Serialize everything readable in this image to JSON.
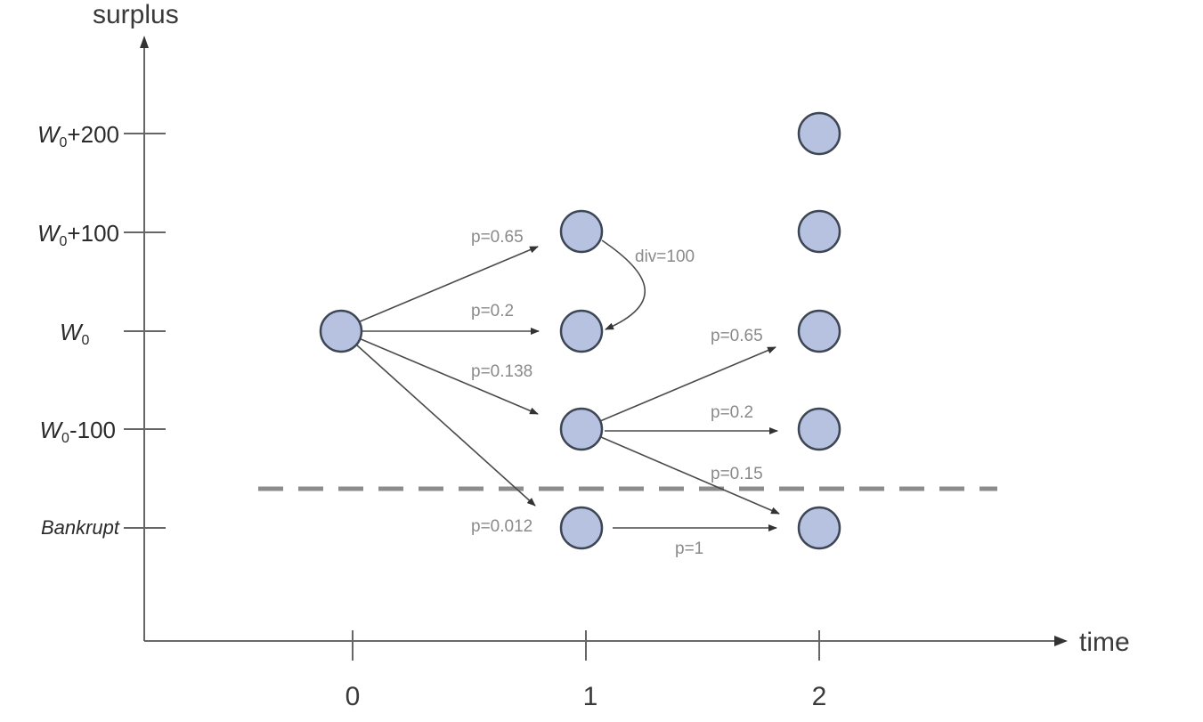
{
  "axes": {
    "y_title": "surplus",
    "x_title": "time",
    "x_ticks": [
      "0",
      "1",
      "2"
    ]
  },
  "levels": [
    {
      "base": "W",
      "sub": "0",
      "suffix": "+200"
    },
    {
      "base": "W",
      "sub": "0",
      "suffix": "+100"
    },
    {
      "base": "W",
      "sub": "0",
      "suffix": ""
    },
    {
      "base": "W",
      "sub": "0",
      "suffix": "-100"
    },
    {
      "base": "Bankrupt",
      "sub": "",
      "suffix": ""
    }
  ],
  "nodes": [
    {
      "id": "t0-w0",
      "time": 0,
      "level": 2
    },
    {
      "id": "t1-w0p100",
      "time": 1,
      "level": 1
    },
    {
      "id": "t1-w0",
      "time": 1,
      "level": 2
    },
    {
      "id": "t1-w0m100",
      "time": 1,
      "level": 3
    },
    {
      "id": "t1-bankrupt",
      "time": 1,
      "level": 4
    },
    {
      "id": "t2-w0p200",
      "time": 2,
      "level": 0
    },
    {
      "id": "t2-w0p100",
      "time": 2,
      "level": 1
    },
    {
      "id": "t2-w0",
      "time": 2,
      "level": 2
    },
    {
      "id": "t2-w0m100",
      "time": 2,
      "level": 3
    },
    {
      "id": "t2-bankrupt",
      "time": 2,
      "level": 4
    }
  ],
  "edges": [
    {
      "from": "t0-w0",
      "to": "t1-w0p100",
      "label": "p=0.65"
    },
    {
      "from": "t0-w0",
      "to": "t1-w0",
      "label": "p=0.2"
    },
    {
      "from": "t0-w0",
      "to": "t1-w0m100",
      "label": "p=0.138"
    },
    {
      "from": "t0-w0",
      "to": "t1-bankrupt",
      "label": "p=0.012"
    },
    {
      "from": "t1-w0m100",
      "to": "t2-w0",
      "label": "p=0.65"
    },
    {
      "from": "t1-w0m100",
      "to": "t2-w0m100",
      "label": "p=0.2"
    },
    {
      "from": "t1-w0m100",
      "to": "t2-bankrupt",
      "label": "p=0.15"
    },
    {
      "from": "t1-bankrupt",
      "to": "t2-bankrupt",
      "label": "p=1"
    }
  ],
  "dividend": {
    "from": "t1-w0p100",
    "to": "t1-w0",
    "label": "div=100"
  },
  "colors": {
    "node_fill": "#b6c2e0",
    "node_stroke": "#3d4654",
    "edge": "#4a4a4a",
    "threshold_line": "#8c8c8c",
    "edge_label": "#8a8a8a"
  }
}
